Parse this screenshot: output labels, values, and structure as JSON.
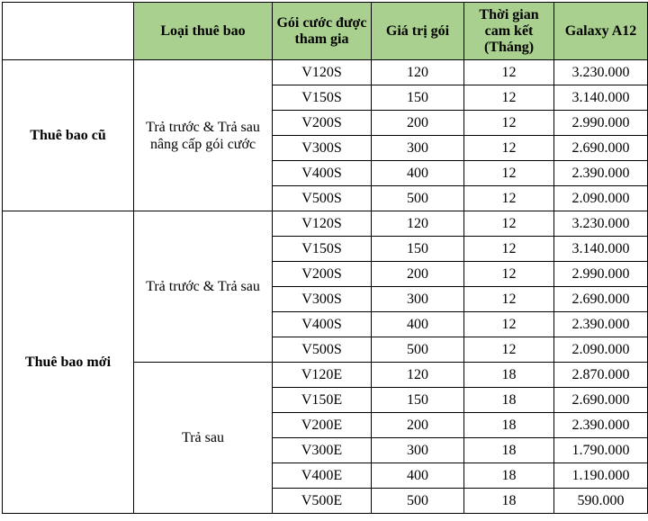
{
  "headers": {
    "col0": "",
    "col1": "Loại thuê bao",
    "col2": "Gói cước được tham gia",
    "col3": "Giá trị gói",
    "col4": "Thời gian cam kết (Tháng)",
    "col5": "Galaxy A12"
  },
  "groups": [
    {
      "name": "Thuê bao cũ",
      "subgroups": [
        {
          "name": "Trả trước & Trả sau nâng cấp gói cước",
          "rows": [
            {
              "package": "V120S",
              "value": "120",
              "months": "12",
              "price": "3.230.000"
            },
            {
              "package": "V150S",
              "value": "150",
              "months": "12",
              "price": "3.140.000"
            },
            {
              "package": "V200S",
              "value": "200",
              "months": "12",
              "price": "2.990.000"
            },
            {
              "package": "V300S",
              "value": "300",
              "months": "12",
              "price": "2.690.000"
            },
            {
              "package": "V400S",
              "value": "400",
              "months": "12",
              "price": "2.390.000"
            },
            {
              "package": "V500S",
              "value": "500",
              "months": "12",
              "price": "2.090.000"
            }
          ]
        }
      ]
    },
    {
      "name": "Thuê bao mới",
      "subgroups": [
        {
          "name": "Trả trước & Trả sau",
          "rows": [
            {
              "package": "V120S",
              "value": "120",
              "months": "12",
              "price": "3.230.000"
            },
            {
              "package": "V150S",
              "value": "150",
              "months": "12",
              "price": "3.140.000"
            },
            {
              "package": "V200S",
              "value": "200",
              "months": "12",
              "price": "2.990.000"
            },
            {
              "package": "V300S",
              "value": "300",
              "months": "12",
              "price": "2.690.000"
            },
            {
              "package": "V400S",
              "value": "400",
              "months": "12",
              "price": "2.390.000"
            },
            {
              "package": "V500S",
              "value": "500",
              "months": "12",
              "price": "2.090.000"
            }
          ]
        },
        {
          "name": "Trả sau",
          "rows": [
            {
              "package": "V120E",
              "value": "120",
              "months": "18",
              "price": "2.870.000"
            },
            {
              "package": "V150E",
              "value": "150",
              "months": "18",
              "price": "2.690.000"
            },
            {
              "package": "V200E",
              "value": "200",
              "months": "18",
              "price": "2.390.000"
            },
            {
              "package": "V300E",
              "value": "300",
              "months": "18",
              "price": "1.790.000"
            },
            {
              "package": "V400E",
              "value": "400",
              "months": "18",
              "price": "1.190.000"
            },
            {
              "package": "V500E",
              "value": "500",
              "months": "18",
              "price": "590.000"
            }
          ]
        }
      ]
    }
  ],
  "colors": {
    "header_bg": "#a9d08e",
    "border": "#000000"
  }
}
